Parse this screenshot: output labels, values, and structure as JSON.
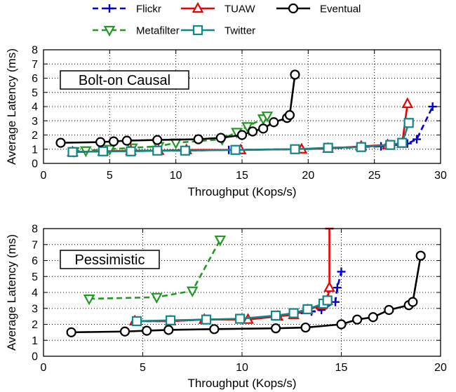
{
  "legend": {
    "entries": [
      {
        "name": "Flickr",
        "color": "#0000dd",
        "marker": "plus",
        "dash": "dash"
      },
      {
        "name": "TUAW",
        "color": "#ee0000",
        "marker": "triangle-up",
        "dash": "solid"
      },
      {
        "name": "Eventual",
        "color": "#000000",
        "marker": "circle",
        "dash": "solid"
      },
      {
        "name": "Metafilter",
        "color": "#229922",
        "marker": "triangle-down",
        "dash": "dash"
      },
      {
        "name": "Twitter",
        "color": "#118888",
        "marker": "square",
        "dash": "solid"
      }
    ]
  },
  "chart_data": [
    {
      "type": "line",
      "annotation": "Bolt-on Causal",
      "xlabel": "Throughput (Kops/s)",
      "ylabel": "Average Latency (ms)",
      "xlim": [
        0,
        30
      ],
      "ylim": [
        0,
        8
      ],
      "xticks": [
        0,
        5,
        10,
        15,
        20,
        25,
        30
      ],
      "yticks": [
        0,
        1,
        2,
        3,
        4,
        5,
        6,
        7,
        8
      ],
      "grid": true,
      "series": [
        {
          "name": "Flickr",
          "points": [
            [
              2.2,
              0.8
            ],
            [
              4.5,
              0.85
            ],
            [
              6.6,
              0.88
            ],
            [
              8.6,
              0.9
            ],
            [
              10.7,
              0.9
            ],
            [
              14,
              0.95
            ],
            [
              19,
              1.0
            ],
            [
              21.5,
              1.05
            ],
            [
              24,
              1.15
            ],
            [
              25.5,
              1.2
            ],
            [
              26.5,
              1.3
            ],
            [
              27.5,
              1.4
            ],
            [
              28.2,
              1.7
            ],
            [
              29.4,
              4.0
            ]
          ]
        },
        {
          "name": "Metafilter",
          "points": [
            [
              2.3,
              0.85
            ],
            [
              3.2,
              0.9
            ],
            [
              5,
              1.0
            ],
            [
              6.7,
              1.1
            ],
            [
              8.7,
              1.2
            ],
            [
              10,
              1.45
            ],
            [
              13.5,
              1.7
            ],
            [
              14.6,
              2.2
            ],
            [
              15.4,
              2.6
            ],
            [
              16.6,
              3.15
            ],
            [
              16.9,
              3.35
            ]
          ]
        },
        {
          "name": "TUAW",
          "points": [
            [
              2.2,
              0.8
            ],
            [
              4.5,
              0.85
            ],
            [
              6.6,
              0.9
            ],
            [
              8.7,
              0.9
            ],
            [
              10.8,
              0.95
            ],
            [
              14.9,
              0.95
            ],
            [
              19.5,
              1.0
            ],
            [
              21.5,
              1.05
            ],
            [
              24,
              1.2
            ],
            [
              26,
              1.3
            ],
            [
              27.1,
              1.4
            ],
            [
              27.5,
              4.2
            ]
          ]
        },
        {
          "name": "Twitter",
          "points": [
            [
              2.2,
              0.8
            ],
            [
              4.5,
              0.85
            ],
            [
              6.6,
              0.85
            ],
            [
              8.6,
              0.9
            ],
            [
              10.7,
              0.9
            ],
            [
              14.5,
              0.95
            ],
            [
              19,
              1.0
            ],
            [
              21.5,
              1.1
            ],
            [
              24,
              1.15
            ],
            [
              26.2,
              1.3
            ],
            [
              27.1,
              1.45
            ],
            [
              27.6,
              2.85
            ]
          ]
        },
        {
          "name": "Eventual",
          "points": [
            [
              1.3,
              1.45
            ],
            [
              4.3,
              1.5
            ],
            [
              5.3,
              1.55
            ],
            [
              6.3,
              1.6
            ],
            [
              8.6,
              1.65
            ],
            [
              11.7,
              1.7
            ],
            [
              13.4,
              1.8
            ],
            [
              15.0,
              2.0
            ],
            [
              15.8,
              2.25
            ],
            [
              16.6,
              2.45
            ],
            [
              17.4,
              2.9
            ],
            [
              18.4,
              3.2
            ],
            [
              18.6,
              3.4
            ],
            [
              19.0,
              6.25
            ]
          ]
        }
      ]
    },
    {
      "type": "line",
      "annotation": "Pessimistic",
      "xlabel": "Throughput (Kops/s)",
      "ylabel": "Average Latency (ms)",
      "xlim": [
        0,
        20
      ],
      "ylim": [
        0,
        8
      ],
      "xticks": [
        0,
        5,
        10,
        15,
        20
      ],
      "yticks": [
        0,
        1,
        2,
        3,
        4,
        5,
        6,
        7,
        8
      ],
      "grid": true,
      "series": [
        {
          "name": "Flickr",
          "points": [
            [
              4.7,
              2.2
            ],
            [
              6.4,
              2.2
            ],
            [
              8.0,
              2.3
            ],
            [
              10.0,
              2.3
            ],
            [
              11.7,
              2.5
            ],
            [
              12.5,
              2.6
            ],
            [
              13.5,
              2.8
            ],
            [
              14.0,
              2.9
            ],
            [
              14.7,
              3.4
            ],
            [
              14.8,
              4.3
            ],
            [
              15.0,
              5.3
            ]
          ]
        },
        {
          "name": "Metafilter",
          "points": [
            [
              2.3,
              3.6
            ],
            [
              5.7,
              3.7
            ],
            [
              7.5,
              4.1
            ],
            [
              8.9,
              7.3
            ]
          ]
        },
        {
          "name": "TUAW",
          "points": [
            [
              4.6,
              2.2
            ],
            [
              6.4,
              2.2
            ],
            [
              8.1,
              2.3
            ],
            [
              10.3,
              2.3
            ],
            [
              11.8,
              2.5
            ],
            [
              12.6,
              2.6
            ],
            [
              13.3,
              2.9
            ],
            [
              14.0,
              3.2
            ],
            [
              14.3,
              3.5
            ],
            [
              14.4,
              4.3
            ],
            [
              14.4,
              8.0
            ]
          ]
        },
        {
          "name": "Twitter",
          "points": [
            [
              4.7,
              2.2
            ],
            [
              6.4,
              2.25
            ],
            [
              8.2,
              2.3
            ],
            [
              9.9,
              2.35
            ],
            [
              11.7,
              2.55
            ],
            [
              12.6,
              2.7
            ],
            [
              13.3,
              2.95
            ],
            [
              14.1,
              3.3
            ],
            [
              14.3,
              3.5
            ]
          ]
        },
        {
          "name": "Eventual",
          "points": [
            [
              1.4,
              1.5
            ],
            [
              4.1,
              1.55
            ],
            [
              5.2,
              1.6
            ],
            [
              6.3,
              1.65
            ],
            [
              8.6,
              1.7
            ],
            [
              11.7,
              1.75
            ],
            [
              13.2,
              1.8
            ],
            [
              15.0,
              2.0
            ],
            [
              15.8,
              2.3
            ],
            [
              16.6,
              2.45
            ],
            [
              17.4,
              2.9
            ],
            [
              18.4,
              3.2
            ],
            [
              18.6,
              3.4
            ],
            [
              19.0,
              6.3
            ]
          ]
        }
      ]
    }
  ]
}
